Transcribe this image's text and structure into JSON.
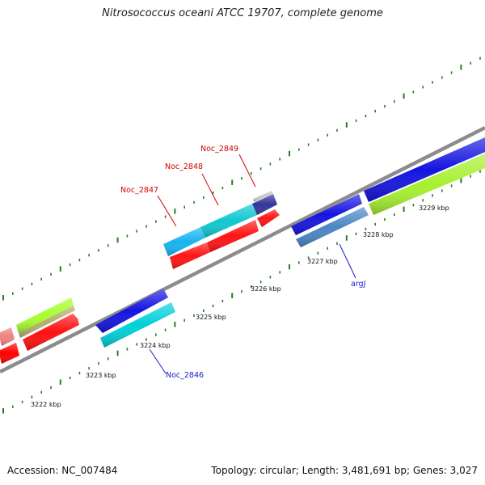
{
  "title": "Nitrosococcus oceani ATCC 19707, complete genome",
  "footer": {
    "accession": "Accession: NC_007484",
    "summary": "Topology: circular; Length: 3,481,691 bp; Genes: 3,027"
  },
  "colors": {
    "backbone": "#8c8c8c",
    "tick": "#2a7a22",
    "label_forward": "#d40000",
    "label_reverse": "#1a1acc"
  },
  "scale_labels": [
    "3222 kbp",
    "3223 kbp",
    "3224 kbp",
    "3225 kbp",
    "3226 kbp",
    "3227 kbp",
    "3228 kbp",
    "3229 kbp"
  ],
  "genes": [
    {
      "name": "Noc_2847",
      "strand": "forward"
    },
    {
      "name": "Noc_2848",
      "strand": "forward"
    },
    {
      "name": "Noc_2849",
      "strand": "forward"
    },
    {
      "name": "Noc_2846",
      "strand": "reverse"
    },
    {
      "name": "argJ",
      "strand": "reverse"
    }
  ]
}
